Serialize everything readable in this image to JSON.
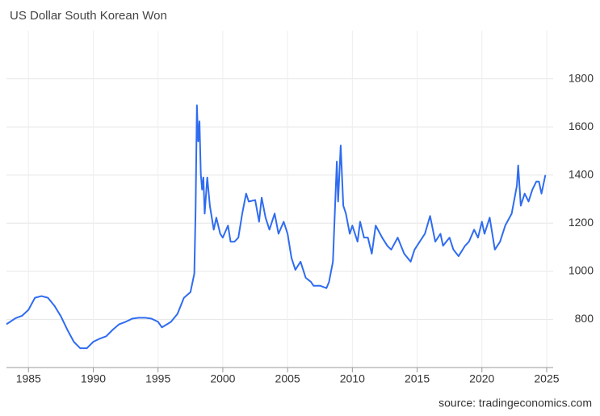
{
  "chart_data": {
    "type": "line",
    "title": "US Dollar South Korean Won",
    "source": "source: tradingeconomics.com",
    "xlim": [
      1983.3,
      2025.5
    ],
    "xticks": [
      1985,
      1990,
      1995,
      2000,
      2005,
      2010,
      2015,
      2020,
      2025
    ],
    "ylim": [
      600,
      2000
    ],
    "yticks": [
      800,
      1000,
      1200,
      1400,
      1600,
      1800
    ],
    "grid": true,
    "series": [
      {
        "color": "#2f6cf0",
        "x": [
          1983.3,
          1984,
          1984.5,
          1985,
          1985.5,
          1986,
          1986.5,
          1987,
          1987.5,
          1988,
          1988.5,
          1989,
          1989.5,
          1990,
          1990.5,
          1991,
          1991.5,
          1992,
          1992.5,
          1993,
          1993.5,
          1994,
          1994.5,
          1995,
          1995.3,
          1995.7,
          1996,
          1996.5,
          1997,
          1997.5,
          1997.8,
          1997.9,
          1998.0,
          1998.1,
          1998.2,
          1998.3,
          1998.4,
          1998.5,
          1998.6,
          1998.8,
          1999,
          1999.3,
          1999.5,
          1999.8,
          2000,
          2000.4,
          2000.6,
          2000.9,
          2001.2,
          2001.5,
          2001.8,
          2002,
          2002.5,
          2002.8,
          2003,
          2003.3,
          2003.6,
          2004,
          2004.3,
          2004.7,
          2005,
          2005.3,
          2005.6,
          2006,
          2006.4,
          2006.8,
          2007,
          2007.5,
          2008,
          2008.2,
          2008.5,
          2008.8,
          2008.9,
          2009.1,
          2009.3,
          2009.5,
          2009.8,
          2010,
          2010.4,
          2010.6,
          2010.9,
          2011.2,
          2011.5,
          2011.8,
          2012.3,
          2012.7,
          2013,
          2013.5,
          2014,
          2014.5,
          2014.8,
          2015.2,
          2015.6,
          2016,
          2016.4,
          2016.8,
          2017,
          2017.5,
          2017.8,
          2018.2,
          2018.7,
          2019,
          2019.4,
          2019.7,
          2020,
          2020.2,
          2020.6,
          2021,
          2021.4,
          2021.8,
          2022.3,
          2022.7,
          2022.8,
          2023,
          2023.3,
          2023.6,
          2023.9,
          2024.2,
          2024.4,
          2024.6,
          2024.9
        ],
        "values": [
          780,
          805,
          815,
          840,
          890,
          897,
          890,
          857,
          813,
          757,
          707,
          680,
          680,
          707,
          720,
          730,
          757,
          780,
          790,
          803,
          807,
          807,
          803,
          790,
          767,
          780,
          790,
          823,
          890,
          913,
          990,
          1256,
          1690,
          1540,
          1623,
          1406,
          1340,
          1390,
          1240,
          1390,
          1273,
          1173,
          1223,
          1156,
          1140,
          1190,
          1123,
          1123,
          1140,
          1240,
          1323,
          1290,
          1296,
          1206,
          1306,
          1223,
          1173,
          1240,
          1156,
          1206,
          1156,
          1056,
          1006,
          1040,
          973,
          956,
          940,
          940,
          930,
          956,
          1040,
          1456,
          1290,
          1523,
          1273,
          1240,
          1156,
          1190,
          1123,
          1206,
          1140,
          1140,
          1073,
          1190,
          1140,
          1106,
          1090,
          1140,
          1073,
          1040,
          1090,
          1123,
          1156,
          1230,
          1123,
          1156,
          1106,
          1140,
          1090,
          1063,
          1106,
          1123,
          1173,
          1140,
          1206,
          1156,
          1223,
          1090,
          1123,
          1190,
          1240,
          1356,
          1440,
          1273,
          1323,
          1290,
          1340,
          1373,
          1373,
          1323,
          1400
        ]
      }
    ]
  }
}
